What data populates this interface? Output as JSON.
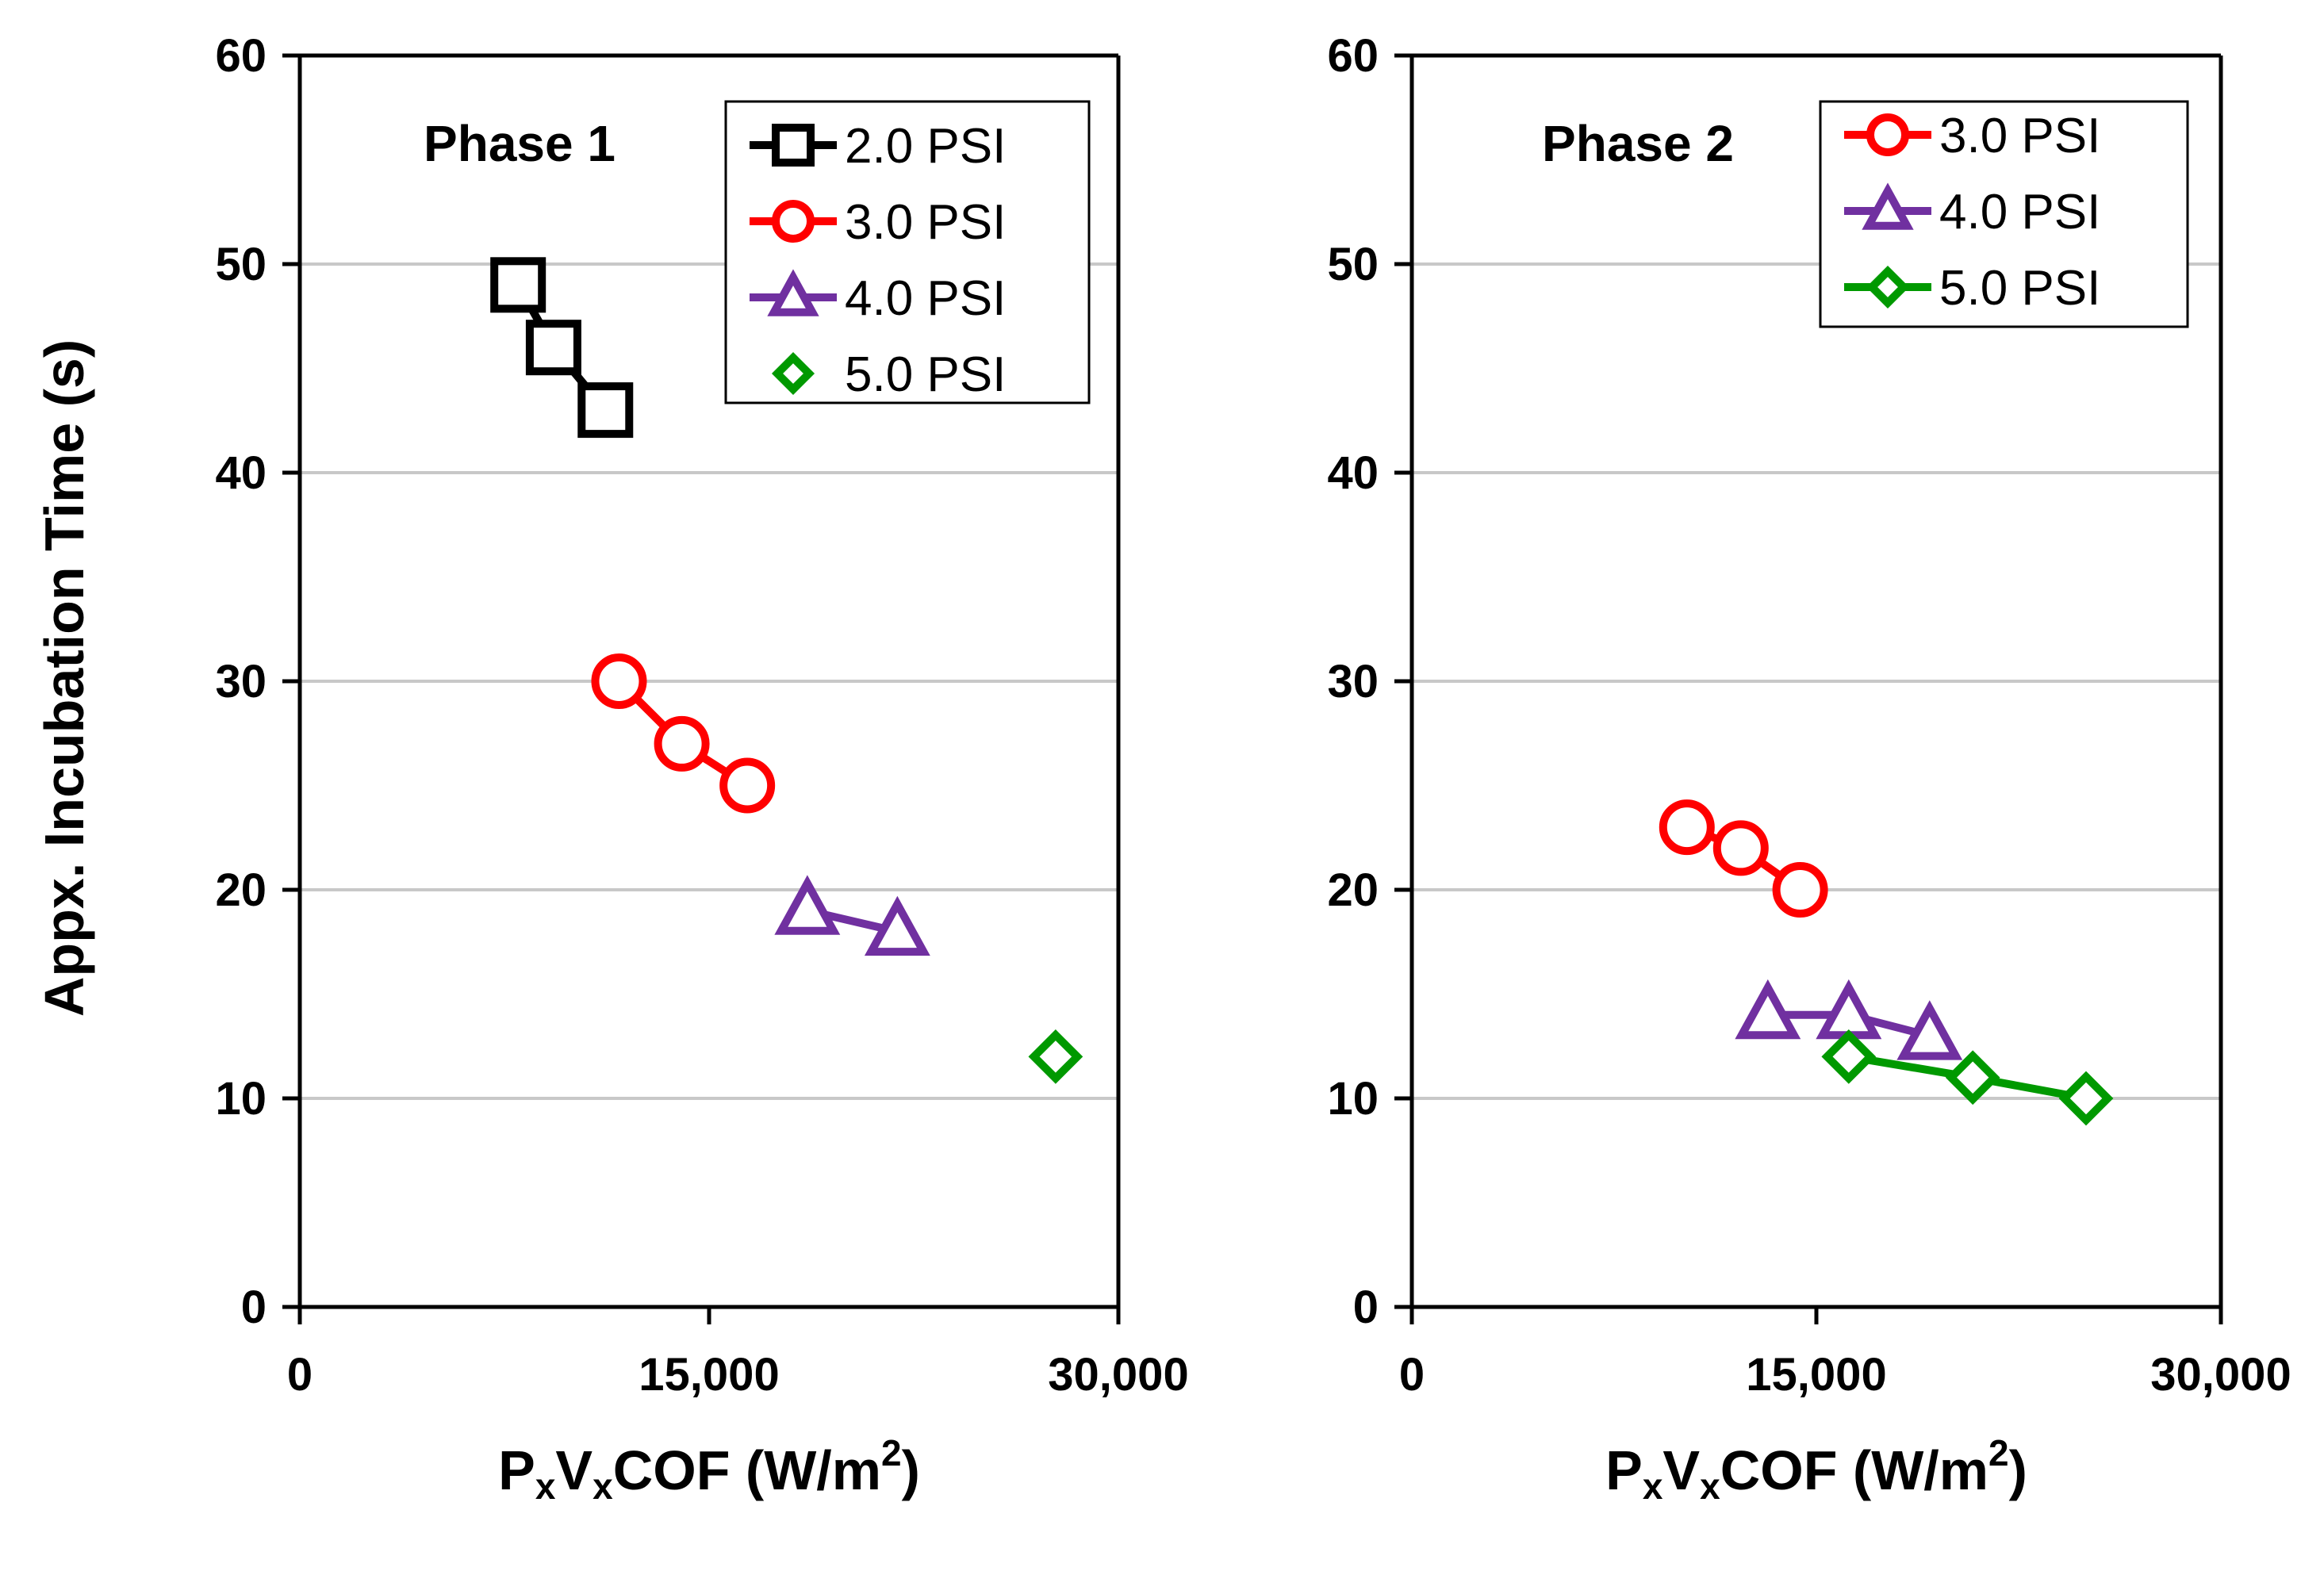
{
  "chart_data": {
    "type": "line",
    "ylabel": "Appx. Incubation Time (s)",
    "xlabel": {
      "base": "P",
      "sub1": "x",
      "mid1": "V",
      "sub2": "x",
      "mid2": "COF (W/m",
      "sup": "2",
      "end": ")"
    },
    "yticks": [
      "0",
      "10",
      "20",
      "30",
      "40",
      "50",
      "60"
    ],
    "xticks": [
      "0",
      "15,000",
      "30,000"
    ],
    "ylim": [
      0,
      60
    ],
    "xlim": [
      0,
      30000
    ],
    "grid": "horizontal",
    "panels": [
      {
        "title": "Phase 1",
        "series": [
          {
            "name": "2.0 PSI",
            "marker": "square",
            "color": "#000000",
            "line": true,
            "x": [
              8000,
              9300,
              11200
            ],
            "y": [
              49,
              46,
              43
            ]
          },
          {
            "name": "3.0 PSI",
            "marker": "circle",
            "color": "#ff0000",
            "line": true,
            "x": [
              11700,
              14000,
              16400
            ],
            "y": [
              30,
              27,
              25
            ]
          },
          {
            "name": "4.0 PSI",
            "marker": "triangle",
            "color": "#7030a0",
            "line": true,
            "x": [
              18600,
              21900
            ],
            "y": [
              19,
              18
            ]
          },
          {
            "name": "5.0 PSI",
            "marker": "diamond",
            "color": "#009900",
            "line": false,
            "x": [
              27700
            ],
            "y": [
              12
            ]
          }
        ]
      },
      {
        "title": "Phase 2",
        "series": [
          {
            "name": "3.0 PSI",
            "marker": "circle",
            "color": "#ff0000",
            "line": true,
            "x": [
              10200,
              12200,
              14400
            ],
            "y": [
              23,
              22,
              20
            ]
          },
          {
            "name": "4.0 PSI",
            "marker": "triangle",
            "color": "#7030a0",
            "line": true,
            "x": [
              13200,
              16200,
              19200
            ],
            "y": [
              14,
              14,
              13
            ]
          },
          {
            "name": "5.0 PSI",
            "marker": "diamond",
            "color": "#009900",
            "line": true,
            "x": [
              16200,
              20800,
              25000
            ],
            "y": [
              12,
              11,
              10
            ]
          }
        ]
      }
    ]
  }
}
